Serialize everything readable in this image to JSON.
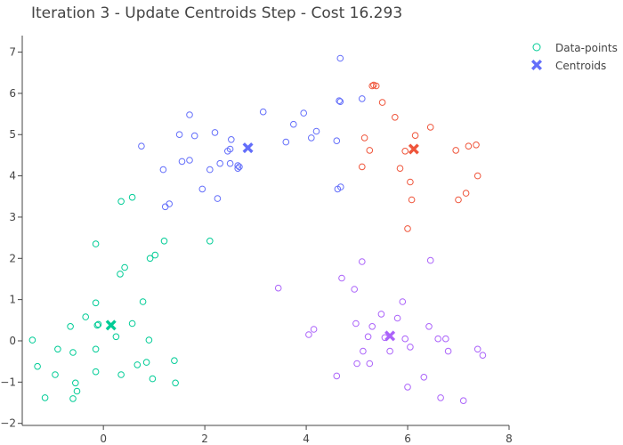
{
  "chart_data": {
    "type": "scatter",
    "title": "Iteration 3 - Update Centroids Step - Cost 16.293",
    "xlabel": "",
    "ylabel": "",
    "xlim": [
      -1.6,
      8
    ],
    "ylim": [
      -2.05,
      7.4
    ],
    "xticks": [
      0,
      2,
      4,
      6,
      8
    ],
    "yticks": [
      -2,
      -1,
      0,
      1,
      2,
      3,
      4,
      5,
      6,
      7
    ],
    "grid": false,
    "legend_position": "top-right",
    "legend": [
      {
        "label": "Data-points",
        "marker": "circle-open",
        "color": "#00cc96"
      },
      {
        "label": "Centroids",
        "marker": "x",
        "color": "#636efa"
      }
    ],
    "clusters": [
      {
        "color": "#00cc96",
        "points": [
          [
            -1.4,
            0.02
          ],
          [
            -1.3,
            -0.62
          ],
          [
            -1.15,
            -1.38
          ],
          [
            -0.9,
            -0.2
          ],
          [
            -0.95,
            -0.82
          ],
          [
            -0.65,
            0.35
          ],
          [
            -0.6,
            -0.28
          ],
          [
            -0.55,
            -1.02
          ],
          [
            -0.52,
            -1.22
          ],
          [
            -0.6,
            -1.4
          ],
          [
            -0.35,
            0.58
          ],
          [
            -0.15,
            0.92
          ],
          [
            -0.12,
            0.38
          ],
          [
            -0.15,
            -0.2
          ],
          [
            -0.15,
            -0.75
          ],
          [
            -0.1,
            0.4
          ],
          [
            -0.15,
            2.35
          ],
          [
            0.25,
            0.1
          ],
          [
            0.35,
            -0.82
          ],
          [
            0.35,
            3.38
          ],
          [
            0.42,
            1.78
          ],
          [
            0.33,
            1.62
          ],
          [
            0.57,
            3.48
          ],
          [
            0.57,
            0.42
          ],
          [
            0.67,
            -0.58
          ],
          [
            0.78,
            0.95
          ],
          [
            0.85,
            -0.52
          ],
          [
            0.9,
            0.02
          ],
          [
            0.92,
            2.0
          ],
          [
            1.02,
            2.08
          ],
          [
            0.97,
            -0.92
          ],
          [
            1.2,
            2.42
          ],
          [
            1.4,
            -0.48
          ],
          [
            1.42,
            -1.02
          ],
          [
            2.1,
            2.42
          ]
        ]
      },
      {
        "color": "#636efa",
        "points": [
          [
            0.75,
            4.72
          ],
          [
            1.18,
            4.15
          ],
          [
            1.22,
            3.25
          ],
          [
            1.3,
            3.32
          ],
          [
            1.5,
            5.0
          ],
          [
            1.55,
            4.35
          ],
          [
            1.7,
            4.38
          ],
          [
            1.7,
            5.48
          ],
          [
            1.8,
            4.97
          ],
          [
            1.95,
            3.68
          ],
          [
            2.1,
            4.15
          ],
          [
            2.2,
            5.05
          ],
          [
            2.25,
            3.45
          ],
          [
            2.3,
            4.3
          ],
          [
            2.45,
            4.6
          ],
          [
            2.5,
            4.65
          ],
          [
            2.5,
            4.3
          ],
          [
            2.52,
            4.88
          ],
          [
            2.65,
            4.18
          ],
          [
            2.65,
            4.25
          ],
          [
            2.68,
            4.22
          ],
          [
            3.15,
            5.55
          ],
          [
            3.6,
            4.82
          ],
          [
            3.75,
            5.25
          ],
          [
            3.95,
            5.52
          ],
          [
            4.1,
            4.92
          ],
          [
            4.2,
            5.08
          ],
          [
            4.6,
            4.85
          ],
          [
            4.62,
            3.68
          ],
          [
            4.65,
            5.82
          ],
          [
            4.67,
            5.8
          ],
          [
            4.68,
            3.73
          ],
          [
            4.67,
            6.85
          ],
          [
            5.1,
            5.87
          ]
        ]
      },
      {
        "color": "#ef553b",
        "points": [
          [
            5.1,
            4.22
          ],
          [
            5.15,
            4.92
          ],
          [
            5.25,
            4.62
          ],
          [
            5.3,
            6.18
          ],
          [
            5.33,
            6.2
          ],
          [
            5.38,
            6.18
          ],
          [
            5.5,
            5.78
          ],
          [
            5.75,
            5.42
          ],
          [
            5.85,
            4.18
          ],
          [
            5.95,
            4.6
          ],
          [
            6.0,
            2.72
          ],
          [
            6.05,
            3.85
          ],
          [
            6.08,
            3.42
          ],
          [
            6.15,
            4.98
          ],
          [
            6.45,
            5.18
          ],
          [
            6.95,
            4.62
          ],
          [
            7.0,
            3.42
          ],
          [
            7.15,
            3.58
          ],
          [
            7.2,
            4.72
          ],
          [
            7.35,
            4.75
          ],
          [
            7.38,
            4.0
          ]
        ]
      },
      {
        "color": "#ab63fa",
        "points": [
          [
            3.45,
            1.28
          ],
          [
            4.05,
            0.15
          ],
          [
            4.15,
            0.28
          ],
          [
            4.6,
            -0.85
          ],
          [
            4.7,
            1.52
          ],
          [
            4.95,
            1.25
          ],
          [
            4.98,
            0.42
          ],
          [
            5.0,
            -0.55
          ],
          [
            5.1,
            1.92
          ],
          [
            5.12,
            -0.25
          ],
          [
            5.22,
            0.1
          ],
          [
            5.25,
            -0.55
          ],
          [
            5.3,
            0.35
          ],
          [
            5.48,
            0.65
          ],
          [
            5.55,
            0.08
          ],
          [
            5.65,
            -0.25
          ],
          [
            5.8,
            0.55
          ],
          [
            5.9,
            0.95
          ],
          [
            5.95,
            0.05
          ],
          [
            6.0,
            -1.12
          ],
          [
            6.05,
            -0.15
          ],
          [
            6.32,
            -0.88
          ],
          [
            6.42,
            0.35
          ],
          [
            6.45,
            1.95
          ],
          [
            6.6,
            0.05
          ],
          [
            6.65,
            -1.38
          ],
          [
            6.75,
            0.05
          ],
          [
            6.8,
            -0.25
          ],
          [
            7.1,
            -1.45
          ],
          [
            7.38,
            -0.2
          ],
          [
            7.48,
            -0.35
          ]
        ]
      }
    ],
    "centroids": [
      {
        "x": 0.15,
        "y": 0.38,
        "color": "#00cc96"
      },
      {
        "x": 2.85,
        "y": 4.68,
        "color": "#636efa"
      },
      {
        "x": 6.12,
        "y": 4.65,
        "color": "#ef553b"
      },
      {
        "x": 5.65,
        "y": 0.12,
        "color": "#ab63fa"
      }
    ]
  }
}
